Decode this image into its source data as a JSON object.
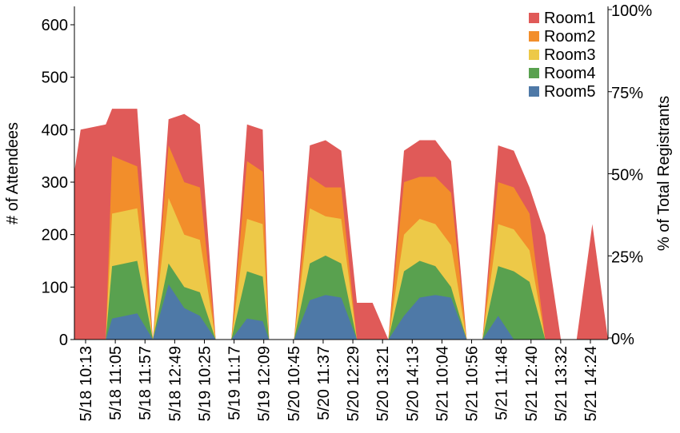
{
  "chart_data": {
    "type": "area",
    "stacked": true,
    "xlabel": "",
    "ylabel": "# of Attendees",
    "y2label": "% of Total Registrants",
    "ylim": [
      0,
      635
    ],
    "yticks": [
      0,
      100,
      200,
      300,
      400,
      500,
      600
    ],
    "y2ticks": [
      "0%",
      "25%",
      "50%",
      "75%",
      "100%"
    ],
    "y2_fraction_ticks": [
      0,
      0.25,
      0.5,
      0.75,
      1.0
    ],
    "legend_position": "top-right",
    "x_ticks": [
      "5/18 10:13",
      "5/18 11:05",
      "5/18 11:57",
      "5/18 12:49",
      "5/19 10:25",
      "5/19 11:17",
      "5/19 12:09",
      "5/20 10:45",
      "5/20 11:37",
      "5/20 12:29",
      "5/20 13:21",
      "5/20 14:13",
      "5/21 10:04",
      "5/21 10:56",
      "5/21 11:48",
      "5/21 12:40",
      "5/21 13:32",
      "5/21 14:24"
    ],
    "series": [
      {
        "name": "Room1",
        "color": "#e05a58"
      },
      {
        "name": "Room2",
        "color": "#f28e2b"
      },
      {
        "name": "Room3",
        "color": "#edc948"
      },
      {
        "name": "Room4",
        "color": "#59a14f"
      },
      {
        "name": "Room5",
        "color": "#4e79a7"
      }
    ],
    "x": [
      0,
      0.2,
      1,
      1.2,
      2,
      2.5,
      3,
      3.5,
      4,
      4.5,
      5,
      5.5,
      6,
      6.2,
      7,
      7.5,
      8,
      8.5,
      9,
      9.5,
      10,
      10.5,
      11,
      11.5,
      12,
      12.5,
      13,
      13.5,
      14,
      14.5,
      15,
      15.5,
      16,
      16.5,
      17
    ],
    "cumulative": {
      "Room5": [
        0,
        0,
        0,
        40,
        50,
        0,
        105,
        60,
        45,
        0,
        0,
        40,
        35,
        0,
        0,
        75,
        85,
        80,
        0,
        0,
        0,
        45,
        80,
        85,
        80,
        0,
        0,
        45,
        0,
        0,
        0,
        0,
        0,
        0,
        0
      ],
      "Room4": [
        0,
        0,
        0,
        140,
        150,
        0,
        145,
        100,
        90,
        0,
        0,
        130,
        120,
        0,
        0,
        145,
        160,
        145,
        0,
        0,
        0,
        130,
        150,
        140,
        100,
        0,
        0,
        140,
        130,
        110,
        0,
        0,
        0,
        0,
        0
      ],
      "Room3": [
        0,
        0,
        0,
        240,
        250,
        0,
        270,
        200,
        190,
        0,
        0,
        230,
        220,
        0,
        0,
        250,
        235,
        230,
        0,
        0,
        0,
        200,
        230,
        220,
        180,
        0,
        0,
        220,
        210,
        170,
        0,
        0,
        0,
        0,
        0
      ],
      "Room2": [
        0,
        0,
        0,
        350,
        330,
        0,
        370,
        300,
        290,
        0,
        0,
        340,
        320,
        0,
        0,
        310,
        290,
        290,
        0,
        0,
        0,
        300,
        310,
        310,
        280,
        0,
        0,
        300,
        290,
        240,
        0,
        0,
        0,
        0,
        0
      ],
      "Room1": [
        320,
        400,
        410,
        440,
        440,
        0,
        420,
        430,
        410,
        0,
        0,
        410,
        400,
        0,
        0,
        370,
        380,
        360,
        70,
        70,
        0,
        360,
        380,
        380,
        340,
        0,
        0,
        370,
        360,
        290,
        200,
        0,
        0,
        220,
        0
      ]
    }
  }
}
